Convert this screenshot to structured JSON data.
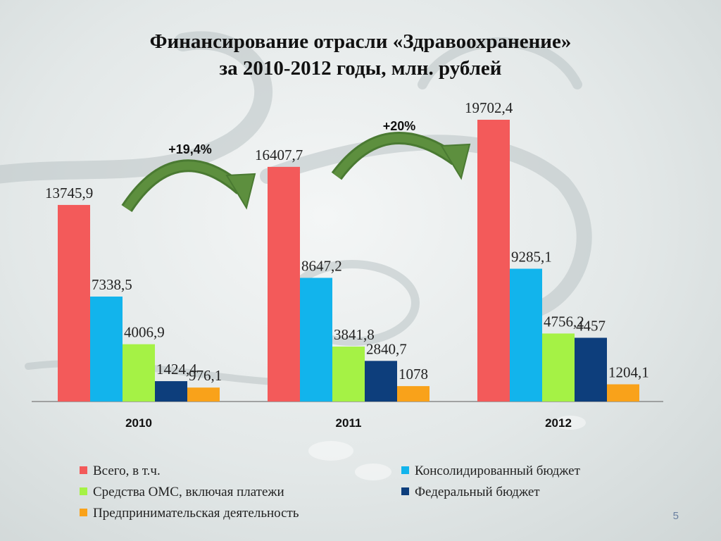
{
  "title": {
    "line1": "Финансирование отрасли «Здравоохранение»",
    "line2": "за 2010-2012 годы, млн. рублей"
  },
  "page_number": "5",
  "chart_data": {
    "type": "bar",
    "categories": [
      "2010",
      "2011",
      "2012"
    ],
    "series": [
      {
        "name": "Всего, в т.ч.",
        "color": "#f35a5a",
        "values": [
          13745.9,
          16407.7,
          19702.4
        ],
        "labels": [
          "13745,9",
          "16407,7",
          "19702,4"
        ]
      },
      {
        "name": "Консолидированный бюджет",
        "color": "#12b4ec",
        "values": [
          7338.5,
          8647.2,
          9285.1
        ],
        "labels": [
          "7338,5",
          "8647,2",
          "9285,1"
        ]
      },
      {
        "name": "Средства ОМС, включая платежи",
        "color": "#a5f245",
        "values": [
          4006.9,
          3841.8,
          4756.2
        ],
        "labels": [
          "4006,9",
          "3841,8",
          "4756,2"
        ]
      },
      {
        "name": "Федеральный бюджет",
        "color": "#0d3e7c",
        "values": [
          1424.4,
          2840.7,
          4457
        ],
        "labels": [
          "1424,4",
          "2840,7",
          "4457"
        ]
      },
      {
        "name": "Предпринимательская деятельность",
        "color": "#f9a21a",
        "values": [
          976.1,
          1078,
          1204.1
        ],
        "labels": [
          "976,1",
          "1078",
          "1204,1"
        ]
      }
    ],
    "annotations": [
      {
        "text": "+19,4%",
        "from": "2010",
        "to": "2011"
      },
      {
        "text": "+20%",
        "from": "2011",
        "to": "2012"
      }
    ],
    "ylim": [
      0,
      20000
    ],
    "grid": false,
    "legend_position": "bottom",
    "arrow_color": "#5d8f3e"
  }
}
